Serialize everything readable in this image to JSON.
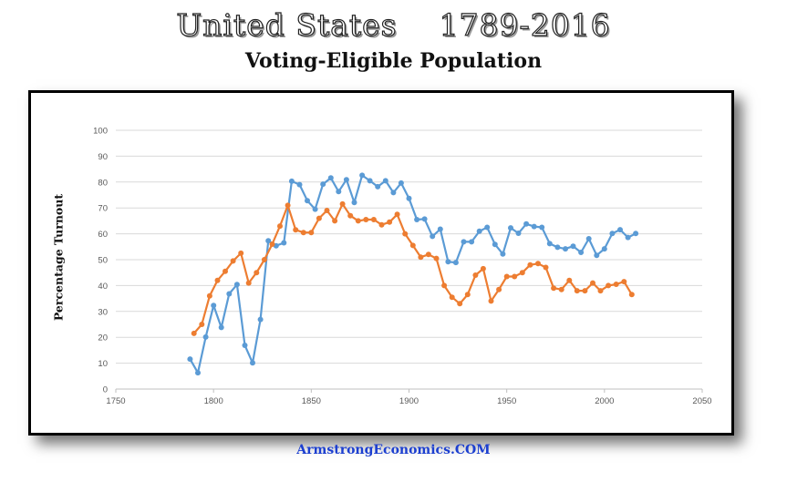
{
  "page": {
    "title": "United States    1789-2016",
    "subtitle": "Voting-Eligible Population",
    "footer": "ArmstrongEconomics.COM"
  },
  "chart_data": {
    "type": "line",
    "title": "",
    "xlabel": "",
    "ylabel": "Percentage Turnout",
    "xlim": [
      1750,
      2050
    ],
    "ylim": [
      0,
      100
    ],
    "x_ticks": [
      1750,
      1800,
      1850,
      1900,
      1950,
      2000,
      2050
    ],
    "y_ticks": [
      0,
      10,
      20,
      30,
      40,
      50,
      60,
      70,
      80,
      90,
      100
    ],
    "grid": true,
    "legend": "none",
    "series": [
      {
        "color": "#5b9bd5",
        "points": [
          [
            1788,
            11.6
          ],
          [
            1792,
            6.3
          ],
          [
            1796,
            20.1
          ],
          [
            1800,
            32.3
          ],
          [
            1804,
            23.8
          ],
          [
            1808,
            36.8
          ],
          [
            1812,
            40.4
          ],
          [
            1816,
            16.9
          ],
          [
            1820,
            10.1
          ],
          [
            1824,
            26.9
          ],
          [
            1828,
            57.3
          ],
          [
            1832,
            55.4
          ],
          [
            1836,
            56.5
          ],
          [
            1840,
            80.3
          ],
          [
            1844,
            79.0
          ],
          [
            1848,
            72.8
          ],
          [
            1852,
            69.5
          ],
          [
            1856,
            79.2
          ],
          [
            1860,
            81.6
          ],
          [
            1864,
            76.3
          ],
          [
            1868,
            80.9
          ],
          [
            1872,
            72.1
          ],
          [
            1876,
            82.6
          ],
          [
            1880,
            80.5
          ],
          [
            1884,
            78.2
          ],
          [
            1888,
            80.5
          ],
          [
            1892,
            75.9
          ],
          [
            1896,
            79.6
          ],
          [
            1900,
            73.7
          ],
          [
            1904,
            65.5
          ],
          [
            1908,
            65.7
          ],
          [
            1912,
            59.0
          ],
          [
            1916,
            61.8
          ],
          [
            1920,
            49.2
          ],
          [
            1924,
            48.9
          ],
          [
            1928,
            56.9
          ],
          [
            1932,
            56.9
          ],
          [
            1936,
            61.0
          ],
          [
            1940,
            62.5
          ],
          [
            1944,
            55.9
          ],
          [
            1948,
            52.2
          ],
          [
            1952,
            62.3
          ],
          [
            1956,
            60.2
          ],
          [
            1960,
            63.8
          ],
          [
            1964,
            62.8
          ],
          [
            1968,
            62.5
          ],
          [
            1972,
            56.2
          ],
          [
            1976,
            54.8
          ],
          [
            1980,
            54.2
          ],
          [
            1984,
            55.2
          ],
          [
            1988,
            52.8
          ],
          [
            1992,
            58.1
          ],
          [
            1996,
            51.7
          ],
          [
            2000,
            54.2
          ],
          [
            2004,
            60.1
          ],
          [
            2008,
            61.6
          ],
          [
            2012,
            58.6
          ],
          [
            2016,
            60.1
          ]
        ]
      },
      {
        "color": "#ed7d31",
        "points": [
          [
            1790,
            21.5
          ],
          [
            1794,
            25.0
          ],
          [
            1798,
            36.0
          ],
          [
            1802,
            42.0
          ],
          [
            1806,
            45.5
          ],
          [
            1810,
            49.5
          ],
          [
            1814,
            52.5
          ],
          [
            1818,
            41.0
          ],
          [
            1822,
            45.0
          ],
          [
            1826,
            50.0
          ],
          [
            1830,
            56.0
          ],
          [
            1834,
            63.0
          ],
          [
            1838,
            71.0
          ],
          [
            1842,
            61.5
          ],
          [
            1846,
            60.5
          ],
          [
            1850,
            60.5
          ],
          [
            1854,
            66.0
          ],
          [
            1858,
            69.0
          ],
          [
            1862,
            65.0
          ],
          [
            1866,
            71.5
          ],
          [
            1870,
            67.0
          ],
          [
            1874,
            65.0
          ],
          [
            1878,
            65.5
          ],
          [
            1882,
            65.5
          ],
          [
            1886,
            63.5
          ],
          [
            1890,
            64.5
          ],
          [
            1894,
            67.5
          ],
          [
            1898,
            60.0
          ],
          [
            1902,
            55.5
          ],
          [
            1906,
            51.0
          ],
          [
            1910,
            52.0
          ],
          [
            1914,
            50.5
          ],
          [
            1918,
            40.0
          ],
          [
            1922,
            35.5
          ],
          [
            1926,
            33.0
          ],
          [
            1930,
            36.5
          ],
          [
            1934,
            44.0
          ],
          [
            1938,
            46.5
          ],
          [
            1942,
            34.0
          ],
          [
            1946,
            38.5
          ],
          [
            1950,
            43.5
          ],
          [
            1954,
            43.5
          ],
          [
            1958,
            45.0
          ],
          [
            1962,
            48.0
          ],
          [
            1966,
            48.5
          ],
          [
            1970,
            47.0
          ],
          [
            1974,
            39.0
          ],
          [
            1978,
            38.5
          ],
          [
            1982,
            42.0
          ],
          [
            1986,
            38.0
          ],
          [
            1990,
            38.0
          ],
          [
            1994,
            41.0
          ],
          [
            1998,
            38.0
          ],
          [
            2002,
            40.0
          ],
          [
            2006,
            40.5
          ],
          [
            2010,
            41.5
          ],
          [
            2014,
            36.5
          ]
        ]
      }
    ]
  }
}
